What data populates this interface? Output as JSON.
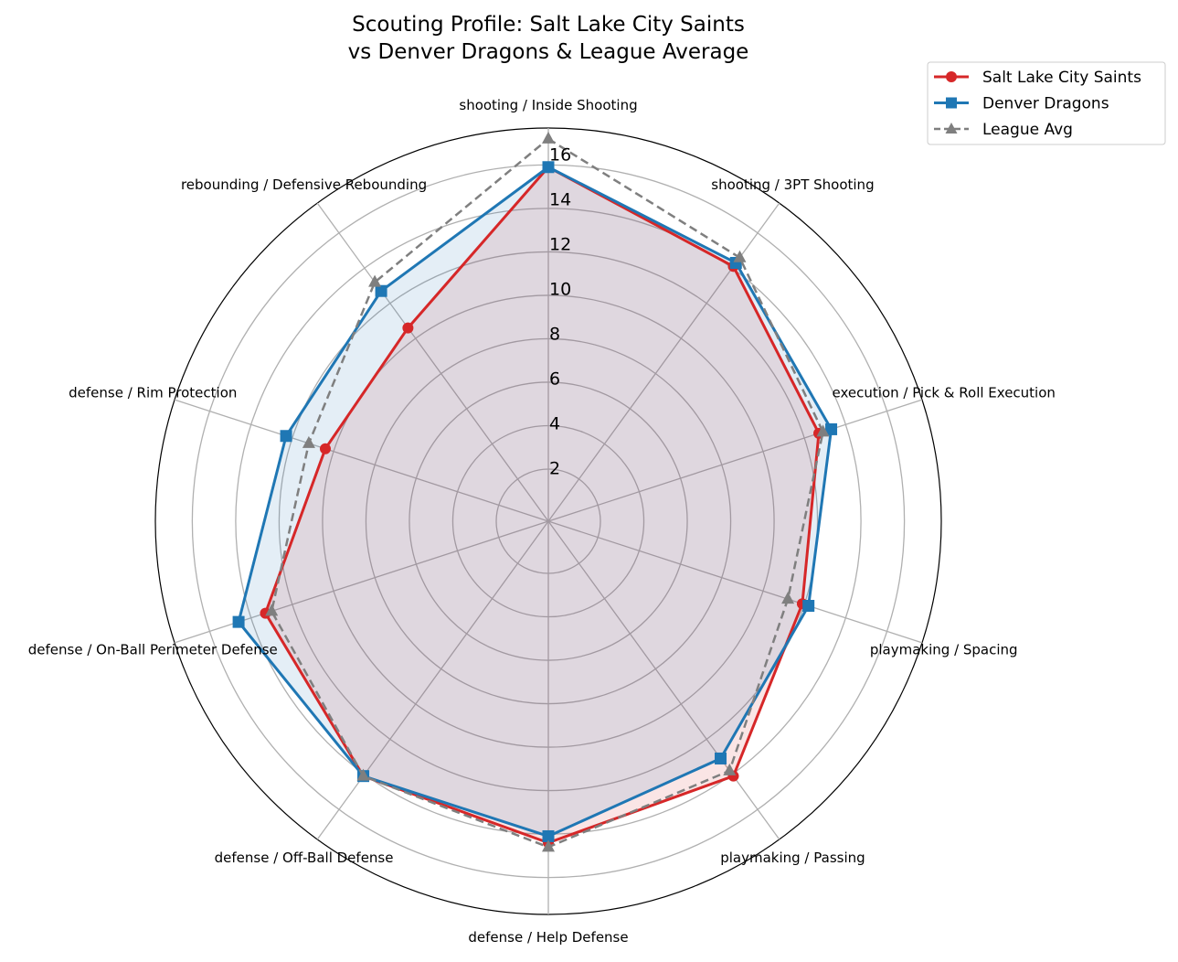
{
  "chart_data": {
    "type": "radar",
    "title": "Scouting Profile: Salt Lake City Saints\nvs Denver Dragons & League Average",
    "title_lines": [
      "Scouting Profile: Salt Lake City Saints",
      "vs Denver Dragons & League Average"
    ],
    "categories": [
      "shooting / Inside Shooting",
      "shooting / 3PT Shooting",
      "execution / Pick & Roll Execution",
      "playmaking / Spacing",
      "playmaking / Passing",
      "defense / Help Defense",
      "defense / Off-Ball Defense",
      "defense / On-Ball Perimeter Defense",
      "defense / Rim Protection",
      "rebounding / Defensive Rebounding"
    ],
    "radial_ticks": [
      2,
      4,
      6,
      8,
      10,
      12,
      14,
      16
    ],
    "radial_tick_labels": [
      "2",
      "4",
      "6",
      "8",
      "10",
      "12",
      "14",
      "16"
    ],
    "rlim": [
      -0.4,
      17.7
    ],
    "direction": "clockwise",
    "start": "top",
    "grid": true,
    "legend_position": "top-right",
    "series": [
      {
        "name": "Salt Lake City Saints",
        "color": "#d62728",
        "marker": "circle",
        "linestyle": "solid",
        "values": [
          15.9,
          14.1,
          12.7,
          11.9,
          14.1,
          14.4,
          14.1,
          13.3,
          10.4,
          10.6
        ]
      },
      {
        "name": "Denver Dragons",
        "color": "#1f77b4",
        "marker": "square",
        "linestyle": "solid",
        "values": [
          15.9,
          14.3,
          13.3,
          12.2,
          13.1,
          14.1,
          14.1,
          14.6,
          12.3,
          12.7
        ]
      },
      {
        "name": "League Avg",
        "color": "#7f7f7f",
        "marker": "triangle",
        "linestyle": "dashed",
        "values": [
          17.2,
          14.6,
          12.9,
          11.2,
          13.8,
          14.6,
          14.1,
          13.0,
          11.2,
          13.2
        ]
      }
    ]
  }
}
